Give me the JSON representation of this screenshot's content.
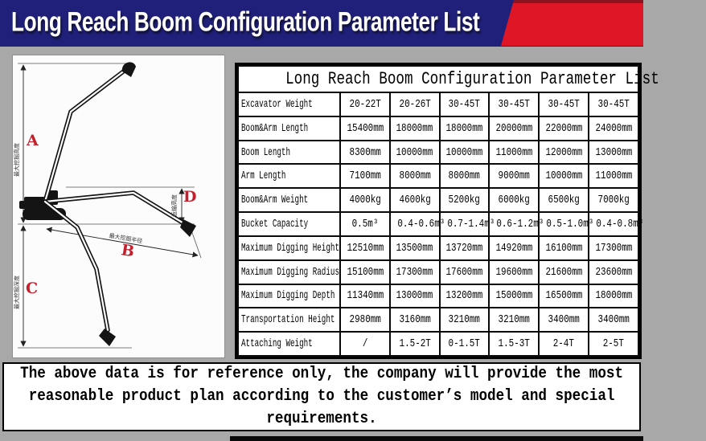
{
  "header": {
    "title": "Long Reach Boom Configuration Parameter List"
  },
  "diagram": {
    "label_a": "A",
    "label_b": "B",
    "label_c": "C",
    "label_d": "D",
    "dim_height_label": "最大挖掘高度",
    "dim_radius_label": "最大挖掘半径",
    "dim_depth_label": "最大挖掘深度",
    "dim_transport_label": "运输高度"
  },
  "table": {
    "title": "Long Reach Boom Configuration Parameter List",
    "rows": [
      {
        "label": "Excavator Weight",
        "values": [
          "20-22T",
          "20-26T",
          "30-45T",
          "30-45T",
          "30-45T",
          "30-45T"
        ]
      },
      {
        "label": "Boom&Arm Length",
        "values": [
          "15400mm",
          "18000mm",
          "18000mm",
          "20000mm",
          "22000mm",
          "24000mm"
        ]
      },
      {
        "label": "Boom Length",
        "values": [
          "8300mm",
          "10000mm",
          "10000mm",
          "11000mm",
          "12000mm",
          "13000mm"
        ]
      },
      {
        "label": "Arm Length",
        "values": [
          "7100mm",
          "8000mm",
          "8000mm",
          "9000mm",
          "10000mm",
          "11000mm"
        ]
      },
      {
        "label": "Boom&Arm Weight",
        "values": [
          "4000kg",
          "4600kg",
          "5200kg",
          "6000kg",
          "6500kg",
          "7000kg"
        ]
      },
      {
        "label": "Bucket Capacity",
        "values": [
          "0.5m³",
          "0.4-0.6m³",
          "0.7-1.4m³",
          "0.6-1.2m³",
          "0.5-1.0m³",
          "0.4-0.8m³"
        ]
      },
      {
        "label": "Maximum Digging Height",
        "values": [
          "12510mm",
          "13500mm",
          "13720mm",
          "14920mm",
          "16100mm",
          "17300mm"
        ]
      },
      {
        "label": "Maximum Digging Radius",
        "values": [
          "15100mm",
          "17300mm",
          "17600mm",
          "19600mm",
          "21600mm",
          "23600mm"
        ]
      },
      {
        "label": "Maximum Digging Depth",
        "values": [
          "11340mm",
          "13000mm",
          "13200mm",
          "15000mm",
          "16500mm",
          "18000mm"
        ]
      },
      {
        "label": "Transportation Height",
        "values": [
          "2980mm",
          "3160mm",
          "3210mm",
          "3210mm",
          "3400mm",
          "3400mm"
        ]
      },
      {
        "label": "Attaching Weight",
        "values": [
          "/",
          "1.5-2T",
          "0-1.5T",
          "1.5-3T",
          "2-4T",
          "2-5T"
        ]
      }
    ]
  },
  "notice": {
    "lines": [
      "The above data is for reference only, the company will provide the most",
      "reasonable product plan according to the customer’s model and special",
      "requirements."
    ]
  },
  "colors": {
    "header_navy": "#20207a",
    "accent_red": "#de1626",
    "page_gray": "#a8a8a8"
  }
}
